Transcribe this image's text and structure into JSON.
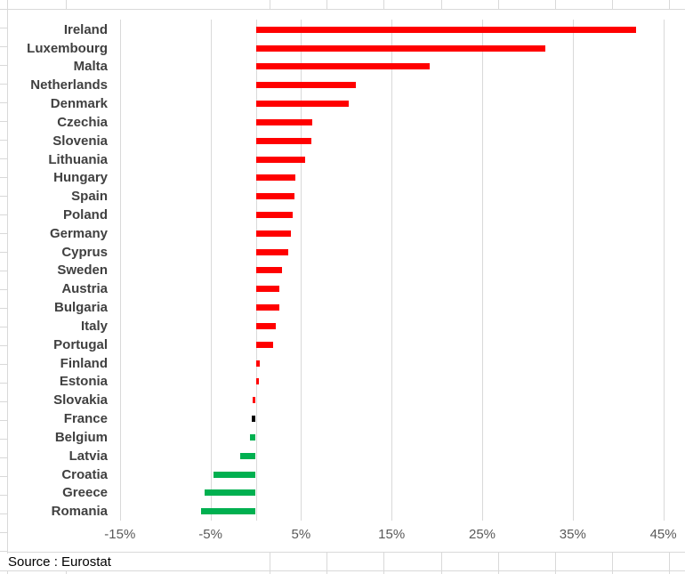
{
  "chart_data": {
    "type": "bar",
    "orientation": "horizontal",
    "title": "",
    "categories": [
      "Ireland",
      "Luxembourg",
      "Malta",
      "Netherlands",
      "Denmark",
      "Czechia",
      "Slovenia",
      "Lithuania",
      "Hungary",
      "Spain",
      "Poland",
      "Germany",
      "Cyprus",
      "Sweden",
      "Austria",
      "Bulgaria",
      "Italy",
      "Portugal",
      "Finland",
      "Estonia",
      "Slovakia",
      "France",
      "Belgium",
      "Latvia",
      "Croatia",
      "Greece",
      "Romania"
    ],
    "values": [
      41.9,
      31.9,
      19.2,
      11.0,
      10.2,
      6.2,
      6.1,
      5.4,
      4.3,
      4.2,
      4.0,
      3.8,
      3.5,
      2.8,
      2.6,
      2.6,
      2.2,
      1.9,
      0.4,
      0.3,
      -0.3,
      -0.4,
      -0.6,
      -1.7,
      -4.6,
      -5.6,
      -6.0
    ],
    "bar_color_keys": [
      "up",
      "up",
      "up",
      "up",
      "up",
      "up",
      "up",
      "up",
      "up",
      "up",
      "up",
      "up",
      "up",
      "up",
      "up",
      "up",
      "up",
      "up",
      "up",
      "up",
      "up",
      "flat",
      "down",
      "down",
      "down",
      "down",
      "down"
    ],
    "x_tick_labels": [
      "-15%",
      "-5%",
      "5%",
      "15%",
      "25%",
      "35%",
      "45%"
    ],
    "x_tick_values": [
      -15,
      -5,
      5,
      15,
      25,
      35,
      45
    ],
    "xlim": [
      -17.5,
      47.5
    ],
    "unit": "%",
    "grid": true,
    "legend": false,
    "source": "Source : Eurostat"
  },
  "colors": {
    "up": "#ff0000",
    "down": "#00b050",
    "flat": "#000000",
    "chart_gridline": "#d9d9d9",
    "sheet_gridline": "#d9d9d9",
    "category_label": "#404040",
    "tick_label": "#595959",
    "source_text": "#000000",
    "background": "#ffffff"
  }
}
